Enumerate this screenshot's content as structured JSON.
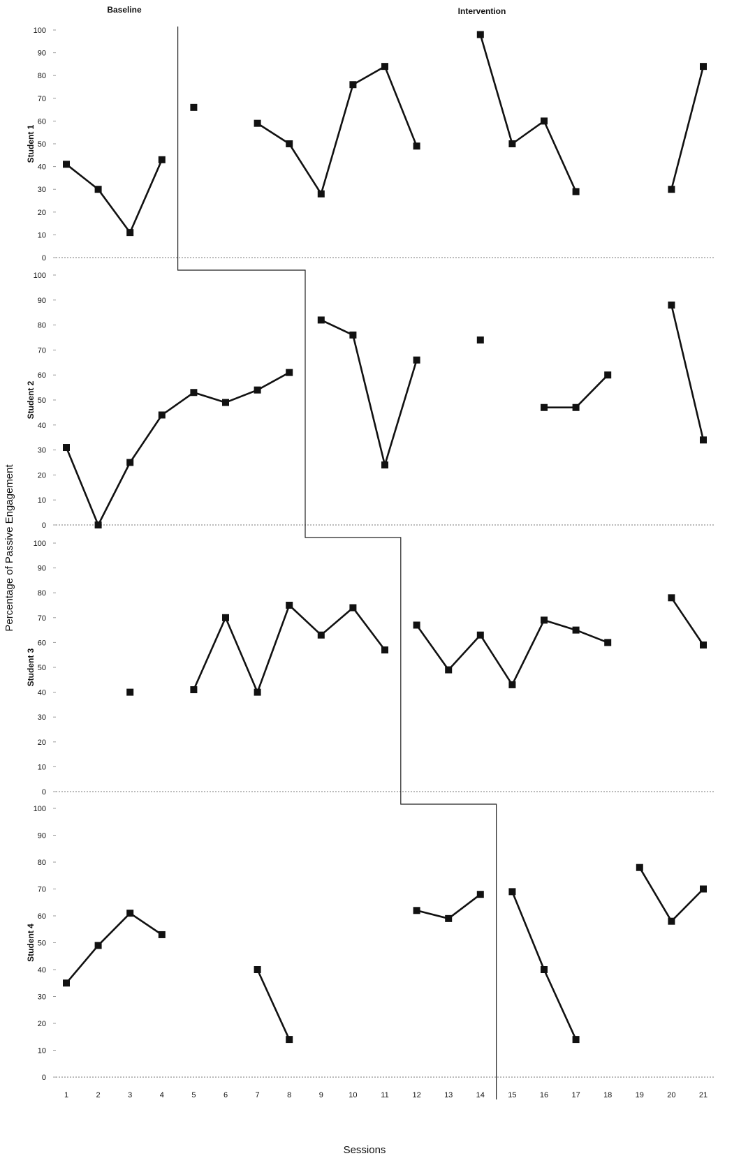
{
  "chart_data": {
    "type": "line",
    "figure_type": "multiple-baseline single-subject design",
    "phase_labels": {
      "baseline": "Baseline",
      "intervention": "Intervention"
    },
    "ylabel": "Percentage of Passive Engagement",
    "xlabel": "Sessions",
    "x_ticks": [
      "1",
      "2",
      "3",
      "4",
      "5",
      "6",
      "7",
      "8",
      "9",
      "10",
      "11",
      "12",
      "13",
      "14",
      "15",
      "16",
      "17",
      "18",
      "19",
      "20",
      "21"
    ],
    "y_ticks": [
      "0",
      "10",
      "20",
      "30",
      "40",
      "50",
      "60",
      "70",
      "80",
      "90",
      "100"
    ],
    "ylim": [
      0,
      100
    ],
    "xlim": [
      1,
      21
    ],
    "marker": "filled square",
    "line_color": "#111111",
    "panels": [
      {
        "label": "Student 1",
        "phase_change_after_session": 4.5,
        "segments": [
          [
            [
              1,
              41
            ],
            [
              2,
              30
            ],
            [
              3,
              11
            ],
            [
              4,
              43
            ]
          ],
          [
            [
              5,
              66
            ]
          ],
          [
            [
              7,
              59
            ],
            [
              8,
              50
            ],
            [
              9,
              28
            ],
            [
              10,
              76
            ],
            [
              11,
              84
            ],
            [
              12,
              49
            ]
          ],
          [
            [
              14,
              98
            ],
            [
              15,
              50
            ],
            [
              16,
              60
            ],
            [
              17,
              29
            ]
          ],
          [
            [
              20,
              30
            ],
            [
              21,
              84
            ]
          ]
        ]
      },
      {
        "label": "Student 2",
        "phase_change_after_session": 8.5,
        "segments": [
          [
            [
              1,
              31
            ],
            [
              2,
              0
            ],
            [
              3,
              25
            ],
            [
              4,
              44
            ],
            [
              5,
              53
            ],
            [
              6,
              49
            ],
            [
              7,
              54
            ],
            [
              8,
              61
            ]
          ],
          [
            [
              9,
              82
            ],
            [
              10,
              76
            ],
            [
              11,
              24
            ],
            [
              12,
              66
            ]
          ],
          [
            [
              14,
              74
            ]
          ],
          [
            [
              16,
              47
            ],
            [
              17,
              47
            ],
            [
              18,
              60
            ]
          ],
          [
            [
              20,
              88
            ],
            [
              21,
              34
            ]
          ]
        ]
      },
      {
        "label": "Student 3",
        "phase_change_after_session": 11.5,
        "segments": [
          [
            [
              3,
              40
            ]
          ],
          [
            [
              5,
              41
            ],
            [
              6,
              70
            ],
            [
              7,
              40
            ],
            [
              8,
              75
            ],
            [
              9,
              63
            ],
            [
              10,
              74
            ],
            [
              11,
              57
            ]
          ],
          [
            [
              12,
              67
            ],
            [
              13,
              49
            ],
            [
              14,
              63
            ],
            [
              15,
              43
            ],
            [
              16,
              69
            ],
            [
              17,
              65
            ],
            [
              18,
              60
            ]
          ],
          [
            [
              20,
              78
            ],
            [
              21,
              59
            ]
          ]
        ]
      },
      {
        "label": "Student 4",
        "phase_change_after_session": 14.5,
        "segments": [
          [
            [
              1,
              35
            ],
            [
              2,
              49
            ],
            [
              3,
              61
            ],
            [
              4,
              53
            ]
          ],
          [
            [
              7,
              40
            ],
            [
              8,
              14
            ]
          ],
          [
            [
              12,
              62
            ],
            [
              13,
              59
            ],
            [
              14,
              68
            ]
          ],
          [
            [
              15,
              69
            ],
            [
              16,
              40
            ],
            [
              17,
              14
            ]
          ],
          [
            [
              19,
              78
            ],
            [
              20,
              58
            ],
            [
              21,
              70
            ]
          ]
        ]
      }
    ]
  }
}
